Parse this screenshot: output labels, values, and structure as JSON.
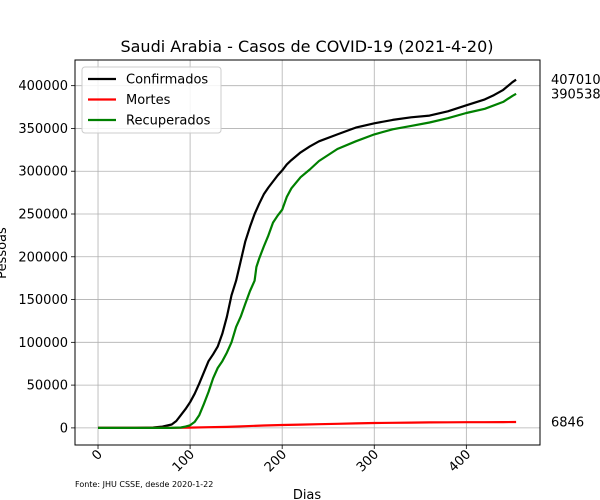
{
  "chart_data": {
    "type": "line",
    "title": "Saudi Arabia - Casos de COVID-19 (2021-4-20)",
    "xlabel": "Dias",
    "ylabel": "Pessoas",
    "source": "Fonte: JHU CSSE, desde 2020-1-22",
    "xlim": [
      -25,
      480
    ],
    "ylim": [
      -20000,
      430000
    ],
    "x_ticks": [
      0,
      100,
      200,
      300,
      400
    ],
    "y_ticks": [
      0,
      50000,
      100000,
      150000,
      200000,
      250000,
      300000,
      350000,
      400000
    ],
    "grid": true,
    "legend": "top-left",
    "end_labels": [
      "407010",
      "390538",
      "6846"
    ],
    "series": [
      {
        "name": "Confirmados",
        "color": "#000000",
        "points": [
          [
            0,
            0
          ],
          [
            40,
            0
          ],
          [
            60,
            500
          ],
          [
            70,
            1500
          ],
          [
            80,
            4000
          ],
          [
            85,
            8000
          ],
          [
            90,
            15000
          ],
          [
            95,
            22000
          ],
          [
            100,
            30000
          ],
          [
            105,
            40000
          ],
          [
            110,
            52000
          ],
          [
            115,
            65000
          ],
          [
            120,
            78000
          ],
          [
            125,
            86000
          ],
          [
            130,
            95000
          ],
          [
            135,
            110000
          ],
          [
            140,
            130000
          ],
          [
            145,
            155000
          ],
          [
            150,
            172000
          ],
          [
            155,
            195000
          ],
          [
            160,
            218000
          ],
          [
            165,
            235000
          ],
          [
            170,
            250000
          ],
          [
            175,
            262000
          ],
          [
            180,
            273000
          ],
          [
            185,
            281000
          ],
          [
            190,
            288000
          ],
          [
            195,
            295000
          ],
          [
            200,
            301000
          ],
          [
            205,
            308000
          ],
          [
            210,
            313000
          ],
          [
            220,
            322000
          ],
          [
            230,
            329000
          ],
          [
            240,
            335000
          ],
          [
            260,
            343000
          ],
          [
            280,
            351000
          ],
          [
            300,
            356000
          ],
          [
            320,
            360000
          ],
          [
            340,
            363000
          ],
          [
            360,
            365000
          ],
          [
            380,
            370000
          ],
          [
            400,
            377000
          ],
          [
            420,
            384000
          ],
          [
            430,
            389000
          ],
          [
            440,
            395000
          ],
          [
            450,
            404000
          ],
          [
            454,
            407010
          ]
        ]
      },
      {
        "name": "Mortes",
        "color": "#ff0000",
        "points": [
          [
            0,
            0
          ],
          [
            60,
            0
          ],
          [
            80,
            50
          ],
          [
            100,
            300
          ],
          [
            120,
            800
          ],
          [
            140,
            1200
          ],
          [
            160,
            2000
          ],
          [
            180,
            2800
          ],
          [
            200,
            3400
          ],
          [
            220,
            3900
          ],
          [
            240,
            4300
          ],
          [
            260,
            4800
          ],
          [
            280,
            5300
          ],
          [
            300,
            5700
          ],
          [
            320,
            6000
          ],
          [
            340,
            6200
          ],
          [
            360,
            6400
          ],
          [
            380,
            6500
          ],
          [
            400,
            6600
          ],
          [
            420,
            6700
          ],
          [
            440,
            6780
          ],
          [
            454,
            6846
          ]
        ]
      },
      {
        "name": "Recuperados",
        "color": "#008000",
        "points": [
          [
            0,
            0
          ],
          [
            80,
            0
          ],
          [
            90,
            500
          ],
          [
            95,
            1500
          ],
          [
            100,
            3000
          ],
          [
            105,
            7000
          ],
          [
            110,
            15000
          ],
          [
            115,
            28000
          ],
          [
            120,
            42000
          ],
          [
            125,
            58000
          ],
          [
            130,
            70000
          ],
          [
            135,
            78000
          ],
          [
            140,
            88000
          ],
          [
            145,
            100000
          ],
          [
            150,
            118000
          ],
          [
            155,
            130000
          ],
          [
            160,
            145000
          ],
          [
            165,
            160000
          ],
          [
            170,
            172000
          ],
          [
            172,
            188000
          ],
          [
            175,
            198000
          ],
          [
            180,
            212000
          ],
          [
            185,
            225000
          ],
          [
            190,
            240000
          ],
          [
            195,
            248000
          ],
          [
            200,
            255000
          ],
          [
            205,
            270000
          ],
          [
            210,
            280000
          ],
          [
            220,
            293000
          ],
          [
            230,
            302000
          ],
          [
            240,
            312000
          ],
          [
            250,
            319000
          ],
          [
            260,
            326000
          ],
          [
            280,
            335000
          ],
          [
            300,
            343000
          ],
          [
            320,
            349000
          ],
          [
            340,
            353000
          ],
          [
            360,
            357000
          ],
          [
            380,
            362000
          ],
          [
            400,
            368000
          ],
          [
            420,
            373000
          ],
          [
            440,
            381000
          ],
          [
            450,
            388000
          ],
          [
            454,
            390538
          ]
        ]
      }
    ]
  }
}
